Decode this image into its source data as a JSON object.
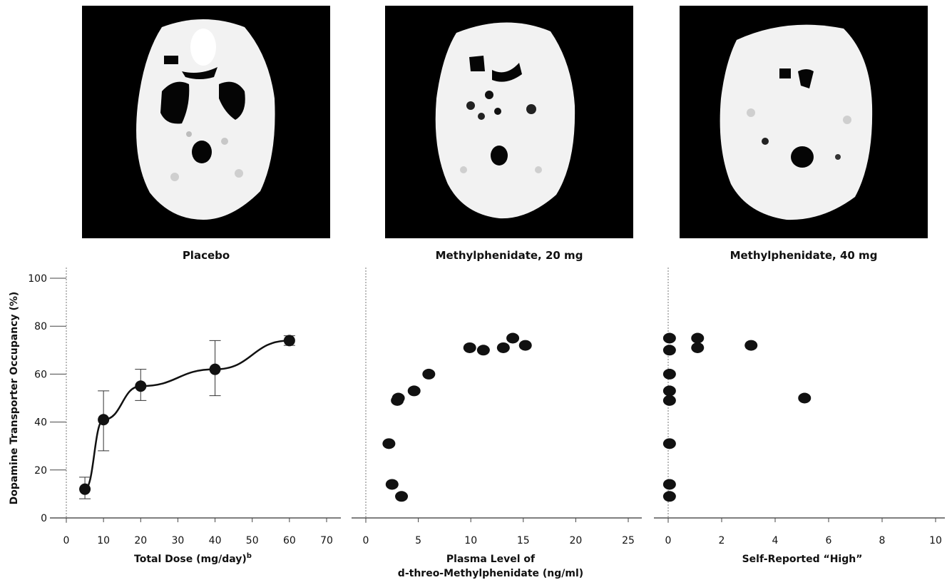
{
  "images": {
    "captions": [
      "Placebo",
      "Methylphenidate, 20 mg",
      "Methylphenidate, 40 mg"
    ]
  },
  "chart_data": [
    {
      "type": "line",
      "ylabel": "Dopamine Transporter Occupancy (%)",
      "xlabel": "Total Dose (mg/day)",
      "xlabel_superscript": "b",
      "xlim": [
        0,
        70
      ],
      "ylim": [
        0,
        100
      ],
      "xticks": [
        0,
        10,
        20,
        30,
        40,
        50,
        60,
        70
      ],
      "yticks": [
        0,
        20,
        40,
        60,
        80,
        100
      ],
      "x": [
        5,
        10,
        20,
        40,
        60
      ],
      "y": [
        12,
        41,
        55,
        62,
        74
      ],
      "error_low": [
        8,
        28,
        49,
        51,
        72
      ],
      "error_high": [
        17,
        53,
        62,
        74,
        76
      ]
    },
    {
      "type": "scatter",
      "xlabel_line1": "Plasma Level of",
      "xlabel_line2": "d-threo-Methylphenidate (ng/ml)",
      "xlim": [
        0,
        25
      ],
      "ylim": [
        0,
        100
      ],
      "xticks": [
        0,
        5,
        10,
        15,
        20,
        25
      ],
      "points": [
        [
          2.2,
          31
        ],
        [
          2.5,
          14
        ],
        [
          3.4,
          9
        ],
        [
          3.0,
          49
        ],
        [
          3.1,
          50
        ],
        [
          4.6,
          53
        ],
        [
          6.0,
          60
        ],
        [
          9.9,
          71
        ],
        [
          11.2,
          70
        ],
        [
          13.1,
          71
        ],
        [
          14.0,
          75
        ],
        [
          15.2,
          72
        ]
      ]
    },
    {
      "type": "scatter",
      "xlabel": "Self-Reported “High”",
      "xlim": [
        0,
        10
      ],
      "ylim": [
        0,
        100
      ],
      "xticks": [
        0,
        2,
        4,
        6,
        8,
        10
      ],
      "points": [
        [
          0.05,
          75
        ],
        [
          0.05,
          70
        ],
        [
          0.05,
          60
        ],
        [
          0.05,
          53
        ],
        [
          0.05,
          49
        ],
        [
          0.05,
          31
        ],
        [
          0.05,
          14
        ],
        [
          0.05,
          9
        ],
        [
          1.1,
          75
        ],
        [
          1.1,
          71
        ],
        [
          3.1,
          72
        ],
        [
          5.1,
          50
        ]
      ]
    }
  ]
}
